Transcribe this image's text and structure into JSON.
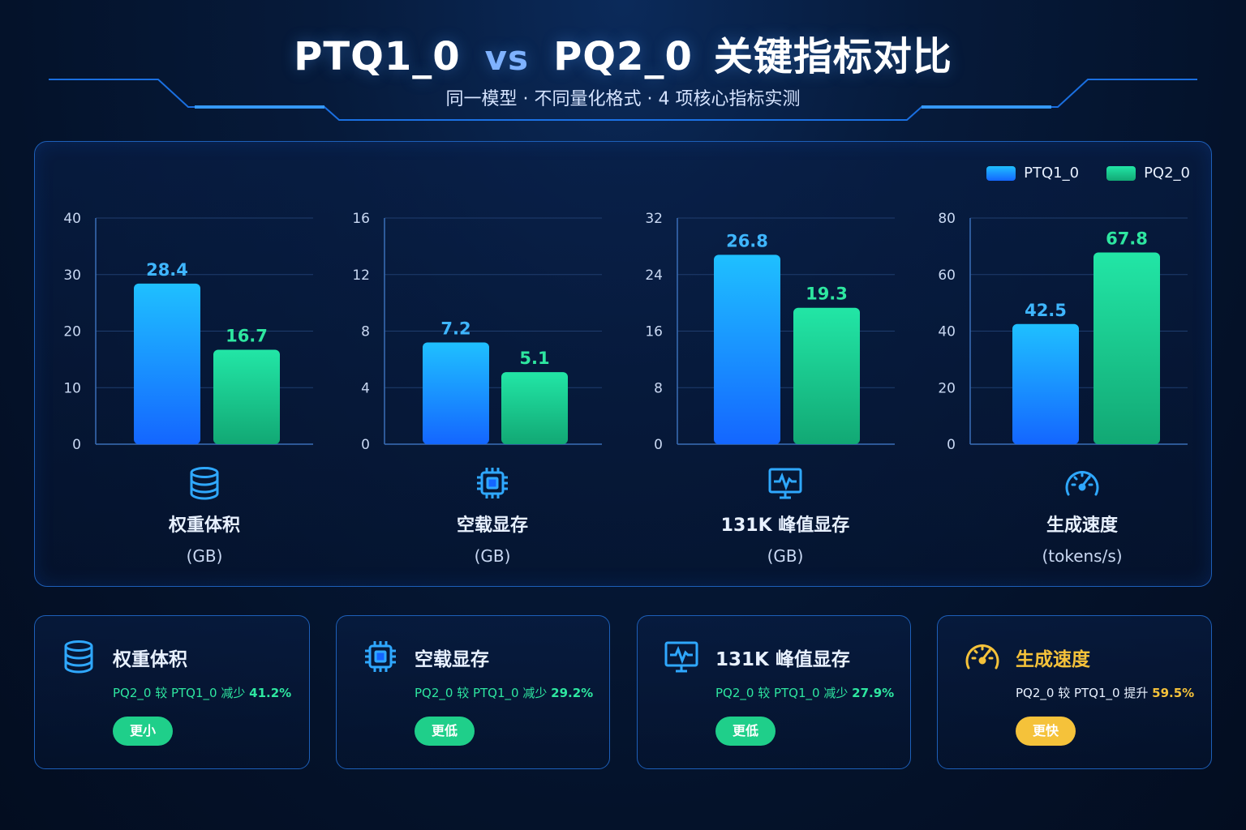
{
  "header": {
    "title_a": "PTQ1_0",
    "title_vs": "vs",
    "title_b": "PQ2_0",
    "title_tail": "关键指标对比",
    "subtitle": "同一模型 · 不同量化格式 · 4 项核心指标实测"
  },
  "legend": [
    {
      "name": "PTQ1_0",
      "color": "#1a9bff"
    },
    {
      "name": "PQ2_0",
      "color": "#1fd89a"
    }
  ],
  "colors": {
    "ptq_top": "#1fc0ff",
    "ptq_bottom": "#1466ff",
    "pq_top": "#22e6a6",
    "pq_bottom": "#12a874",
    "ptq_label": "#3fb6ff",
    "pq_label": "#2ee6a0",
    "green_badge": "#1fcf8a",
    "yellow_accent": "#f5c23a"
  },
  "chart_data": [
    {
      "type": "bar",
      "title": "权重体积",
      "unit": "(GB)",
      "icon": "database-icon",
      "categories": [
        "PTQ1_0",
        "PQ2_0"
      ],
      "values": [
        28.4,
        16.7
      ],
      "value_labels": [
        "28.4",
        "16.7"
      ],
      "ylim": [
        0,
        40
      ],
      "yticks": [
        "0",
        "10",
        "20",
        "30",
        "40"
      ]
    },
    {
      "type": "bar",
      "title": "空载显存",
      "unit": "(GB)",
      "icon": "chip-icon",
      "categories": [
        "PTQ1_0",
        "PQ2_0"
      ],
      "values": [
        7.2,
        5.1
      ],
      "value_labels": [
        "7.2",
        "5.1"
      ],
      "ylim": [
        0,
        16
      ],
      "yticks": [
        "0",
        "4",
        "8",
        "12",
        "16"
      ]
    },
    {
      "type": "bar",
      "title": "131K 峰值显存",
      "unit": "(GB)",
      "icon": "monitor-pulse-icon",
      "categories": [
        "PTQ1_0",
        "PQ2_0"
      ],
      "values": [
        26.8,
        19.3
      ],
      "value_labels": [
        "26.8",
        "19.3"
      ],
      "ylim": [
        0,
        32
      ],
      "yticks": [
        "0",
        "8",
        "16",
        "24",
        "32"
      ]
    },
    {
      "type": "bar",
      "title": "生成速度",
      "unit": "(tokens/s)",
      "icon": "speedometer-icon",
      "categories": [
        "PTQ1_0",
        "PQ2_0"
      ],
      "values": [
        42.5,
        67.8
      ],
      "value_labels": [
        "42.5",
        "67.8"
      ],
      "ylim": [
        0,
        80
      ],
      "yticks": [
        "0",
        "20",
        "40",
        "60",
        "80"
      ]
    }
  ],
  "cards": [
    {
      "title": "权重体积",
      "icon": "database-icon",
      "desc_prefix": "PQ2_0 较 PTQ1_0 减少",
      "pct": "41.2%",
      "badge": "更小",
      "accent": "#2ee6a0"
    },
    {
      "title": "空载显存",
      "icon": "chip-icon",
      "desc_prefix": "PQ2_0 较 PTQ1_0 减少",
      "pct": "29.2%",
      "badge": "更低",
      "accent": "#2ee6a0"
    },
    {
      "title": "131K 峰值显存",
      "icon": "monitor-pulse-icon",
      "desc_prefix": "PQ2_0 较 PTQ1_0 减少",
      "pct": "27.9%",
      "badge": "更低",
      "accent": "#2ee6a0"
    },
    {
      "title": "生成速度",
      "icon": "speedometer-icon",
      "desc_prefix": "PQ2_0 较 PTQ1_0 提升",
      "pct": "59.5%",
      "badge": "更快",
      "accent": "#f5c23a"
    }
  ]
}
